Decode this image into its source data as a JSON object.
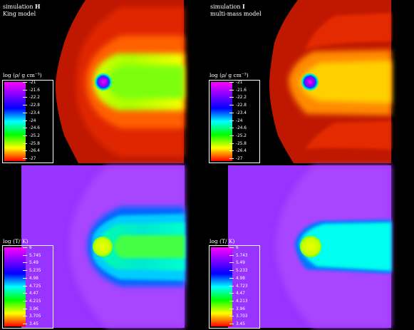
{
  "panels": {
    "H": {
      "title_prefix": "simulation ",
      "title_bold": "H",
      "subtitle": "King model"
    },
    "I": {
      "title_prefix": "simulation ",
      "title_bold": "I",
      "subtitle": "multi-mass model"
    }
  },
  "density_scale": {
    "label": "log (ρ/ g cm⁻³)",
    "ticks": [
      "-21",
      "-21.6",
      "-22.2",
      "-22.8",
      "-23.4",
      "-24",
      "-24.6",
      "-25.2",
      "-25.8",
      "-26.4",
      "-27"
    ]
  },
  "temperature_scale_left": {
    "label": "log (T/ K)",
    "ticks": [
      "6",
      "5.745",
      "5.49",
      "5.235",
      "4.98",
      "4.725",
      "4.47",
      "4.215",
      "3.96",
      "3.705",
      "3.45"
    ]
  },
  "temperature_scale_right": {
    "label": "log (T/ K)",
    "ticks": [
      "6",
      "5.743",
      "5.49",
      "5.233",
      "4.98",
      "4.723",
      "4.47",
      "4.213",
      "3.96",
      "3.703",
      "3.45"
    ]
  },
  "colormap": [
    "#ff00ff",
    "#8000ff",
    "#0000ff",
    "#00ffff",
    "#00ff00",
    "#ffff00",
    "#ff0000"
  ]
}
